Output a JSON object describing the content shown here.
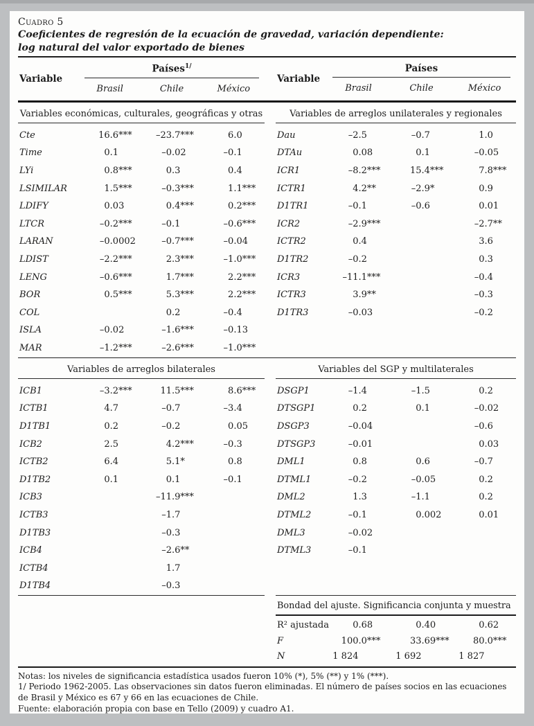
{
  "document": {
    "kicker": "Cuadro 5",
    "title_line1": "Coeficientes de regresión de la ecuación de gravedad, variación dependiente:",
    "title_line2": "log natural del valor exportado de bienes"
  },
  "header": {
    "variable_label": "Variable",
    "paises_label": "Países",
    "paises_footnote": "1/",
    "countries": [
      "Brasil",
      "Chile",
      "México"
    ]
  },
  "sections": {
    "economicas": {
      "title": "Variables económicas, culturales, geográficas y otras",
      "rows": [
        {
          "v": "Cte",
          "b": "16.6***",
          "c": "–23.7***",
          "m": "6.0"
        },
        {
          "v": "Time",
          "b": "0.1",
          "c": "–0.02",
          "m": "–0.1"
        },
        {
          "v": "LYi",
          "b": "0.8***",
          "c": "0.3",
          "m": "0.4"
        },
        {
          "v": "LSIMILAR",
          "b": "1.5***",
          "c": "–0.3***",
          "m": "1.1***"
        },
        {
          "v": "LDIFY",
          "b": "0.03",
          "c": "0.4***",
          "m": "0.2***"
        },
        {
          "v": "LTCR",
          "b": "–0.2***",
          "c": "–0.1",
          "m": "–0.6***"
        },
        {
          "v": "LARAN",
          "b": "–0.0002",
          "c": "–0.7***",
          "m": "–0.04"
        },
        {
          "v": "LDIST",
          "b": "–2.2***",
          "c": "2.3***",
          "m": "–1.0***"
        },
        {
          "v": "LENG",
          "b": "–0.6***",
          "c": "1.7***",
          "m": "2.2***"
        },
        {
          "v": "BOR",
          "b": "0.5***",
          "c": "5.3***",
          "m": "2.2***"
        },
        {
          "v": "COL",
          "b": "",
          "c": "0.2",
          "m": "–0.4"
        },
        {
          "v": "ISLA",
          "b": "–0.02",
          "c": "–1.6***",
          "m": "–0.13"
        },
        {
          "v": "MAR",
          "b": "–1.2***",
          "c": "–2.6***",
          "m": "–1.0***"
        }
      ]
    },
    "unilaterales": {
      "title": "Variables de arreglos unilaterales y regionales",
      "rows": [
        {
          "v": "Dau",
          "b": "–2.5",
          "c": "–0.7",
          "m": "1.0"
        },
        {
          "v": "DTAu",
          "b": "0.08",
          "c": "0.1",
          "m": "–0.05"
        },
        {
          "v": "ICR1",
          "b": "–8.2***",
          "c": "15.4***",
          "m": "7.8***"
        },
        {
          "v": "ICTR1",
          "b": "4.2**",
          "c": "–2.9*",
          "m": "0.9"
        },
        {
          "v": "D1TR1",
          "b": "–0.1",
          "c": "–0.6",
          "m": "0.01"
        },
        {
          "v": "ICR2",
          "b": "–2.9***",
          "c": "",
          "m": "–2.7**"
        },
        {
          "v": "ICTR2",
          "b": "0.4",
          "c": "",
          "m": "3.6"
        },
        {
          "v": "D1TR2",
          "b": "–0.2",
          "c": "",
          "m": "0.3"
        },
        {
          "v": "ICR3",
          "b": "–11.1***",
          "c": "",
          "m": "–0.4"
        },
        {
          "v": "ICTR3",
          "b": "3.9**",
          "c": "",
          "m": "–0.3"
        },
        {
          "v": "D1TR3",
          "b": "–0.03",
          "c": "",
          "m": "–0.2"
        }
      ]
    },
    "bilaterales": {
      "title": "Variables de arreglos bilaterales",
      "rows": [
        {
          "v": "ICB1",
          "b": "–3.2***",
          "c": "11.5***",
          "m": "8.6***"
        },
        {
          "v": "ICTB1",
          "b": "4.7",
          "c": "–0.7",
          "m": "–3.4"
        },
        {
          "v": "D1TB1",
          "b": "0.2",
          "c": "–0.2",
          "m": "0.05"
        },
        {
          "v": "ICB2",
          "b": "2.5",
          "c": "4.2***",
          "m": "–0.3"
        },
        {
          "v": "ICTB2",
          "b": "6.4",
          "c": "5.1*",
          "m": "0.8"
        },
        {
          "v": "D1TB2",
          "b": "0.1",
          "c": "0.1",
          "m": "–0.1"
        },
        {
          "v": "ICB3",
          "b": "",
          "c": "–11.9***",
          "m": ""
        },
        {
          "v": "ICTB3",
          "b": "",
          "c": "–1.7",
          "m": ""
        },
        {
          "v": "D1TB3",
          "b": "",
          "c": "–0.3",
          "m": ""
        },
        {
          "v": "ICB4",
          "b": "",
          "c": "–2.6**",
          "m": ""
        },
        {
          "v": "ICTB4",
          "b": "",
          "c": "1.7",
          "m": ""
        },
        {
          "v": "D1TB4",
          "b": "",
          "c": "–0.3",
          "m": ""
        }
      ]
    },
    "sgp": {
      "title": "Variables del SGP y multilaterales",
      "rows": [
        {
          "v": "DSGP1",
          "b": "–1.4",
          "c": "–1.5",
          "m": "0.2"
        },
        {
          "v": "DTSGP1",
          "b": "0.2",
          "c": "0.1",
          "m": "–0.02"
        },
        {
          "v": "DSGP3",
          "b": "–0.04",
          "c": "",
          "m": "–0.6"
        },
        {
          "v": "DTSGP3",
          "b": "–0.01",
          "c": "",
          "m": "0.03"
        },
        {
          "v": "DML1",
          "b": "0.8",
          "c": "0.6",
          "m": "–0.7"
        },
        {
          "v": "DTML1",
          "b": "–0.2",
          "c": "–0.05",
          "m": "0.2"
        },
        {
          "v": "DML2",
          "b": "1.3",
          "c": "–1.1",
          "m": "0.2"
        },
        {
          "v": "DTML2",
          "b": "–0.1",
          "c": "0.002",
          "m": "0.01"
        },
        {
          "v": "DML3",
          "b": "–0.02",
          "c": "",
          "m": ""
        },
        {
          "v": "DTML3",
          "b": "–0.1",
          "c": "",
          "m": ""
        }
      ]
    }
  },
  "fit": {
    "title": "Bondad del ajuste. Significancia conjunta y muestra",
    "rows": [
      {
        "v": "R² ajustada",
        "b": "0.68",
        "c": "0.40",
        "m": "0.62"
      },
      {
        "v": "F",
        "vi": true,
        "b": "100.0***",
        "c": "33.69***",
        "m": "80.0***"
      },
      {
        "v": "N",
        "vi": true,
        "b": "1 824",
        "c": "1 692",
        "m": "1 827"
      }
    ]
  },
  "notes": {
    "line1": "Notas: los niveles de significancia estadística usados fueron 10% (*), 5% (**) y 1% (***).",
    "line2": "1/ Periodo 1962-2005. Las observaciones sin datos fueron eliminadas. El número de países socios en las ecuaciones de Brasil y México es 67 y 66 en las ecuaciones de Chile.",
    "line3": "Fuente: elaboración propia con base en Tello (2009) y cuadro A1."
  }
}
